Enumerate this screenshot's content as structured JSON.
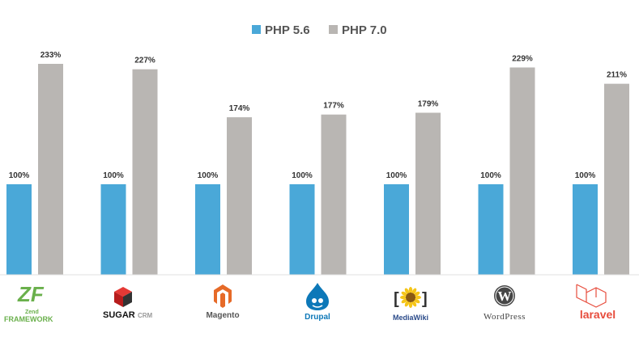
{
  "chart_data": {
    "type": "bar",
    "categories": [
      "Zend Framework",
      "SugarCRM",
      "Magento",
      "Drupal",
      "MediaWiki",
      "WordPress",
      "Laravel"
    ],
    "series": [
      {
        "name": "PHP 5.6",
        "values": [
          100,
          100,
          100,
          100,
          100,
          100,
          100
        ],
        "labels": [
          "100%",
          "100%",
          "100%",
          "100%",
          "100%",
          "100%",
          "100%"
        ],
        "color": "#4aa8d8"
      },
      {
        "name": "PHP 7.0",
        "values": [
          233,
          227,
          174,
          177,
          179,
          229,
          211
        ],
        "labels": [
          "233%",
          "227%",
          "174%",
          "177%",
          "179%",
          "229%",
          "211%"
        ],
        "color": "#b9b6b3"
      }
    ],
    "unit": "%",
    "ylim": [
      0,
      260
    ],
    "grid": false,
    "legend_position": "top-center",
    "title": "",
    "xlabel": "",
    "ylabel": ""
  },
  "logos": [
    {
      "id": "zend",
      "icon": "zend-logo",
      "text": "FRAMEWORK",
      "small": "Zend",
      "color": "#6ab04c"
    },
    {
      "id": "sugarcrm",
      "icon": "sugarcrm-cube-logo",
      "text": "SUGAR",
      "text2": "CRM",
      "color": "#d32f2f"
    },
    {
      "id": "magento",
      "icon": "magento-logo",
      "text": "Magento",
      "color": "#e66a28"
    },
    {
      "id": "drupal",
      "icon": "drupal-drop-logo",
      "text": "Drupal",
      "color": "#0d78b8"
    },
    {
      "id": "mediawiki",
      "icon": "mediawiki-sunflower-logo",
      "text": "MediaWiki",
      "color": "#2b4b8a"
    },
    {
      "id": "wordpress",
      "icon": "wordpress-logo",
      "text": "WordPress",
      "color": "#444444"
    },
    {
      "id": "laravel",
      "icon": "laravel-logo",
      "text": "laravel",
      "color": "#e74c3c"
    }
  ]
}
